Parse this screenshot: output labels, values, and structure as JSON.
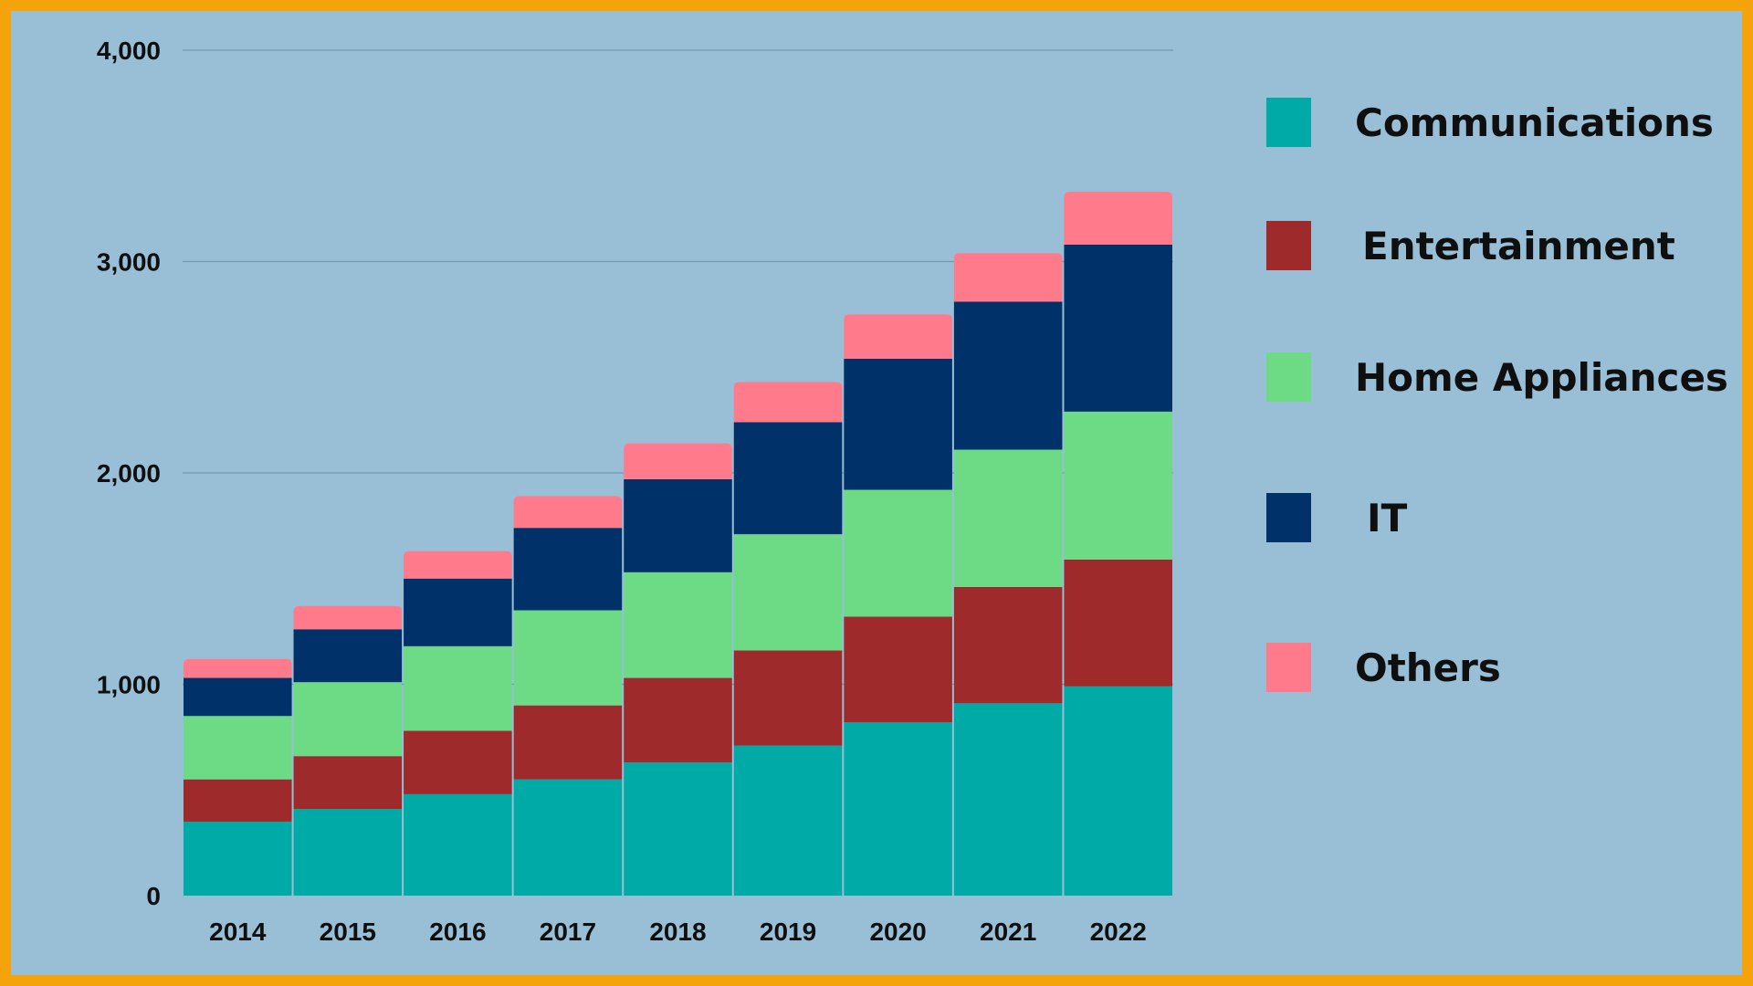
{
  "chart_data": {
    "type": "bar",
    "stacked": true,
    "title": "",
    "xlabel": "",
    "ylabel": "",
    "ylim": [
      0,
      4000
    ],
    "yticks": [
      0,
      1000,
      2000,
      3000,
      4000
    ],
    "ytick_labels": [
      "0",
      "1,000",
      "2,000",
      "3,000",
      "4,000"
    ],
    "grid": true,
    "legend_position": "right",
    "categories": [
      "2014",
      "2015",
      "2016",
      "2017",
      "2018",
      "2019",
      "2020",
      "2021",
      "2022"
    ],
    "series": [
      {
        "name": "Communications",
        "color": "#00aba7",
        "values": [
          350,
          410,
          480,
          550,
          630,
          710,
          820,
          910,
          990
        ]
      },
      {
        "name": "Entertainment",
        "color": "#9e2a2b",
        "values": [
          200,
          250,
          300,
          350,
          400,
          450,
          500,
          550,
          600
        ]
      },
      {
        "name": "Home Appliances",
        "color": "#6ddb86",
        "values": [
          300,
          350,
          400,
          450,
          500,
          550,
          600,
          650,
          700
        ]
      },
      {
        "name": "IT",
        "color": "#003169",
        "values": [
          180,
          250,
          320,
          390,
          440,
          530,
          620,
          700,
          790
        ]
      },
      {
        "name": "Others",
        "color": "#ff7b8c",
        "values": [
          90,
          110,
          130,
          150,
          170,
          190,
          210,
          230,
          250
        ]
      }
    ]
  },
  "legend": {
    "items": [
      {
        "label": "Communications"
      },
      {
        "label": "Entertainment"
      },
      {
        "label": "Home Appliances"
      },
      {
        "label": "IT"
      },
      {
        "label": "Others"
      }
    ]
  }
}
